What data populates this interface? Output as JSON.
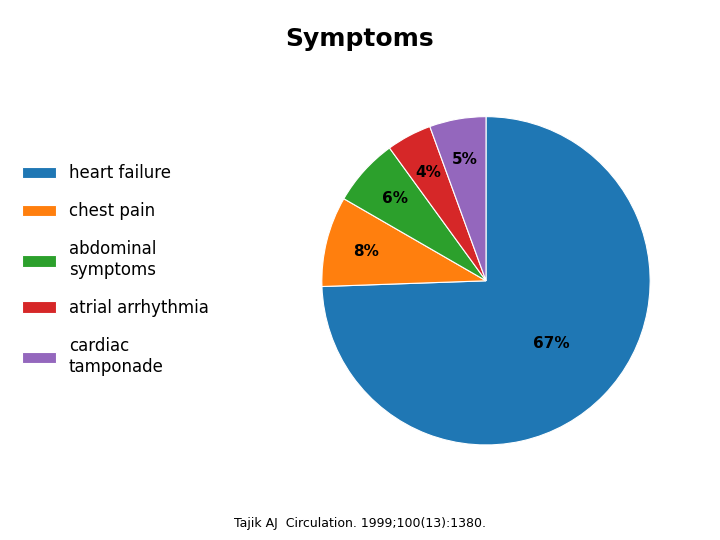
{
  "chart_data": {
    "type": "pie",
    "title": "Symptoms",
    "categories": [
      "heart failure",
      "chest pain",
      "abdominal\nsymptoms",
      "atrial arrhythmia",
      "cardiac\ntamponade"
    ],
    "values": [
      67,
      8,
      6,
      4,
      5
    ],
    "value_labels": [
      "67%",
      "8%",
      "6%",
      "4%",
      "5%"
    ],
    "data_labels": true,
    "legend": "center left",
    "annotations": [
      "Tajik AJ  Circulation. 1999;100(13):1380."
    ]
  }
}
